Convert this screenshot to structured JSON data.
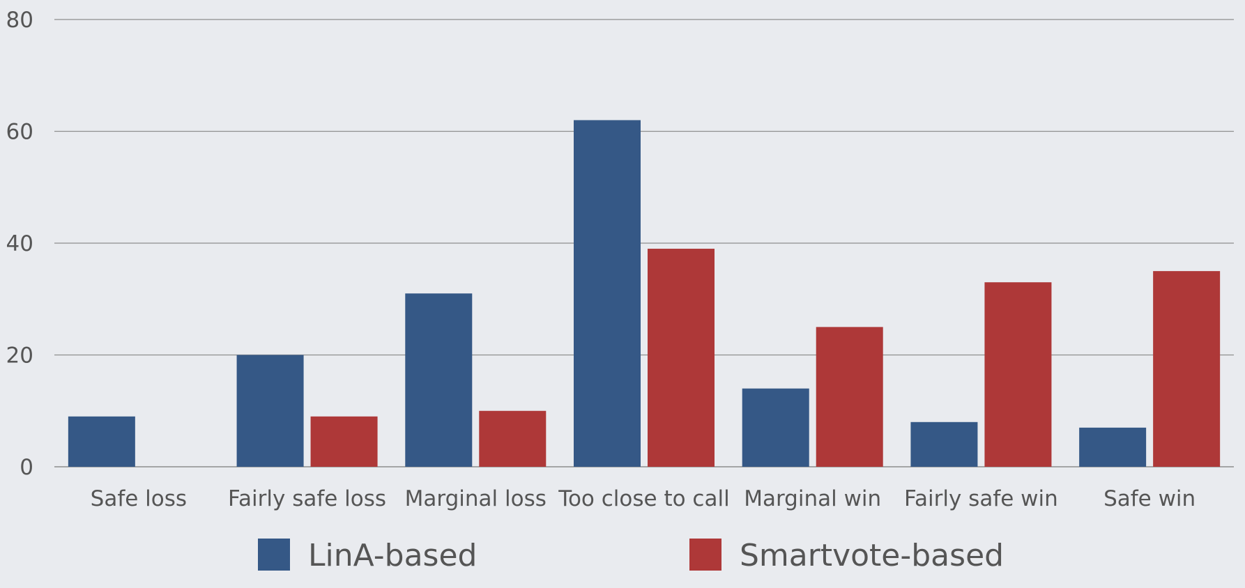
{
  "chart_data": {
    "type": "bar",
    "title": "",
    "xlabel": "",
    "ylabel": "",
    "categories": [
      "Safe loss",
      "Fairly safe loss",
      "Marginal loss",
      "Too close to call",
      "Marginal win",
      "Fairly safe win",
      "Safe win"
    ],
    "series": [
      {
        "name": "LinA-based",
        "color": "#355886",
        "values": [
          9,
          20,
          31,
          62,
          14,
          8,
          7
        ]
      },
      {
        "name": "Smartvote-based",
        "color": "#ae3838",
        "values": [
          0,
          9,
          10,
          39,
          25,
          33,
          35
        ]
      }
    ],
    "ylim": [
      0,
      80
    ],
    "yticks": [
      0,
      20,
      40,
      60,
      80
    ],
    "grid": true,
    "legend_position": "bottom"
  },
  "style": {
    "background": "#e9ebef",
    "text_color": "#555555",
    "grid_color": "#8e8e8e"
  }
}
